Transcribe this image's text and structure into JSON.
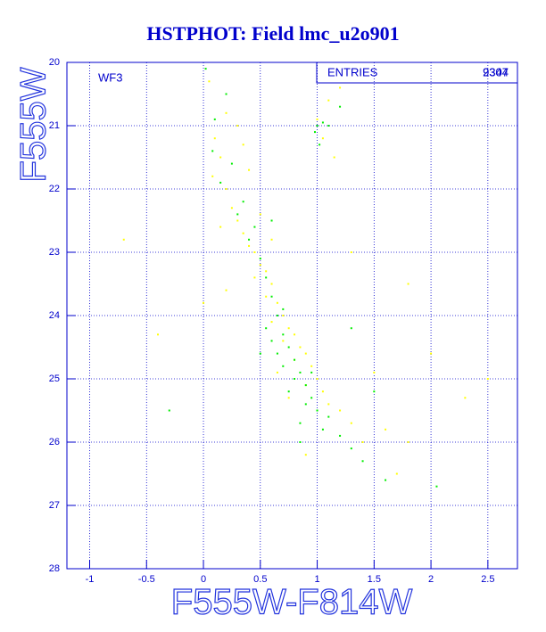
{
  "chart_data": {
    "type": "scatter",
    "title": "HSTPHOT: Field lmc_u2o901",
    "x_label": "F555W-F814W",
    "y_label": "F555W",
    "annotation": "WF3",
    "stats": {
      "label": "ENTRIES",
      "entries": [
        "2304",
        "9347"
      ]
    },
    "xlim": [
      -1.2,
      2.76
    ],
    "ylim": [
      28,
      20
    ],
    "xticks": [
      -1,
      -0.5,
      0,
      0.5,
      1,
      1.5,
      2,
      2.5
    ],
    "yticks": [
      20,
      21,
      22,
      23,
      24,
      25,
      26,
      27,
      28
    ],
    "grid": true,
    "series": [
      {
        "color": "#ffff00",
        "x": [
          0.05,
          0.1,
          0.15,
          0.08,
          0.2,
          0.25,
          0.3,
          0.35,
          0.4,
          0.45,
          0.5,
          0.55,
          0.45,
          0.6,
          0.55,
          0.65,
          0.7,
          0.6,
          0.75,
          0.8,
          0.7,
          0.85,
          0.9,
          0.8,
          0.95,
          1.0,
          0.9,
          1.05,
          1.1,
          1.2,
          1.3,
          1.4,
          0.3,
          0.4,
          0.2,
          0.5,
          1.0,
          1.05,
          1.1,
          1.2,
          1.15,
          0.65,
          0.75,
          1.6,
          1.8,
          2.0,
          2.3,
          -0.7,
          -0.4,
          0.0,
          0.2,
          1.5,
          1.3,
          1.8,
          2.5,
          0.6,
          0.35,
          1.7,
          0.9,
          0.15
        ],
        "values": [
          20.3,
          21.2,
          21.5,
          21.8,
          22.0,
          22.3,
          22.5,
          22.7,
          22.9,
          23.0,
          23.2,
          23.3,
          23.4,
          23.5,
          23.7,
          23.8,
          24.0,
          24.1,
          24.2,
          24.3,
          24.4,
          24.5,
          24.6,
          24.7,
          24.8,
          25.0,
          25.1,
          25.2,
          25.4,
          25.5,
          25.7,
          26.0,
          21.0,
          21.7,
          20.8,
          22.4,
          20.9,
          21.2,
          20.6,
          20.4,
          21.5,
          24.9,
          25.3,
          25.8,
          26.0,
          24.6,
          25.3,
          22.8,
          24.3,
          23.8,
          23.6,
          24.9,
          23.0,
          23.5,
          25.0,
          22.8,
          21.3,
          26.5,
          26.2,
          22.6
        ]
      },
      {
        "color": "#00ee00",
        "x": [
          0.02,
          0.1,
          0.08,
          0.15,
          0.3,
          0.4,
          0.5,
          0.55,
          0.6,
          0.65,
          0.7,
          0.75,
          0.8,
          0.85,
          0.9,
          0.95,
          1.0,
          0.7,
          0.65,
          0.8,
          0.9,
          1.1,
          1.2,
          1.3,
          1.4,
          0.85,
          0.75,
          0.95,
          1.0,
          1.02,
          1.05,
          0.98,
          1.1,
          1.2,
          0.35,
          0.45,
          0.25,
          0.2,
          0.55,
          0.6,
          1.05,
          1.5,
          1.6,
          2.05,
          -0.3,
          0.5,
          0.7,
          1.3,
          0.85,
          0.6
        ],
        "values": [
          20.1,
          20.9,
          21.4,
          21.9,
          22.4,
          22.8,
          23.1,
          23.4,
          23.7,
          24.0,
          24.3,
          24.5,
          24.7,
          24.9,
          25.1,
          25.3,
          25.5,
          24.8,
          24.6,
          25.0,
          25.4,
          25.6,
          25.9,
          26.1,
          26.3,
          25.7,
          25.2,
          24.9,
          21.0,
          21.3,
          20.95,
          21.1,
          21.0,
          20.7,
          22.2,
          22.6,
          21.6,
          20.5,
          24.2,
          24.4,
          25.8,
          25.2,
          26.6,
          26.7,
          25.5,
          24.6,
          23.9,
          24.2,
          26.0,
          22.5
        ]
      }
    ]
  }
}
